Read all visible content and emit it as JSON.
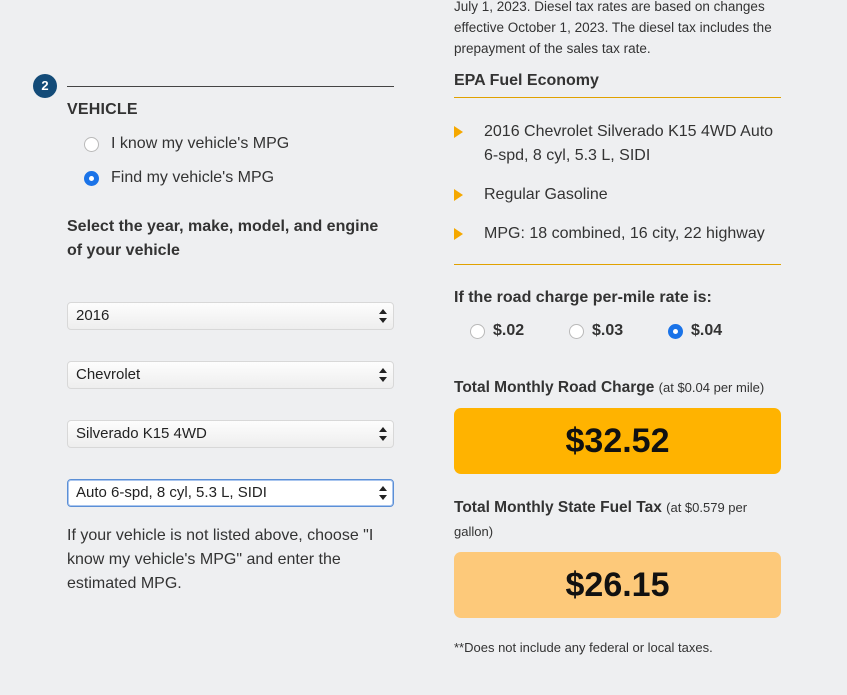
{
  "step": {
    "number": "2"
  },
  "vehicle": {
    "title": "VEHICLE",
    "options": [
      {
        "label": "I know my vehicle's MPG",
        "selected": false
      },
      {
        "label": "Find my vehicle's MPG",
        "selected": true
      }
    ],
    "instruction": "Select the year, make, model, and engine of your vehicle",
    "selects": {
      "year": "2016",
      "make": "Chevrolet",
      "model": "Silverado K15 4WD",
      "engine": "Auto 6-spd, 8 cyl, 5.3 L, SIDI"
    },
    "note": "If your vehicle is not listed above, choose \"I know my vehicle's MPG\" and enter the estimated MPG."
  },
  "results": {
    "top_text": "July 1, 2023. Diesel tax rates are based on changes effective October 1, 2023. The diesel tax includes the prepayment of the sales tax rate.",
    "epa_title": "EPA Fuel Economy",
    "epa_items": [
      "2016 Chevrolet Silverado K15 4WD Auto 6-spd, 8 cyl, 5.3 L, SIDI",
      "Regular Gasoline",
      "MPG: 18 combined, 16 city, 22 highway"
    ],
    "rate_label": "If the road charge per-mile rate is:",
    "rates": [
      {
        "label": "$.02",
        "selected": false
      },
      {
        "label": "$.03",
        "selected": false
      },
      {
        "label": "$.04",
        "selected": true
      }
    ],
    "road_charge": {
      "label": "Total Monthly Road Charge",
      "detail": "(at $0.04 per mile)",
      "amount": "$32.52"
    },
    "fuel_tax": {
      "label": "Total Monthly State Fuel Tax",
      "detail": "(at $0.579 per gallon)",
      "amount": "$26.15"
    },
    "footnote": "**Does not include any federal or local taxes."
  },
  "colors": {
    "accent_blue": "#134b78",
    "gold": "#ffb300",
    "light_gold": "#fdc97a",
    "radio_checked": "#1a73e8"
  }
}
